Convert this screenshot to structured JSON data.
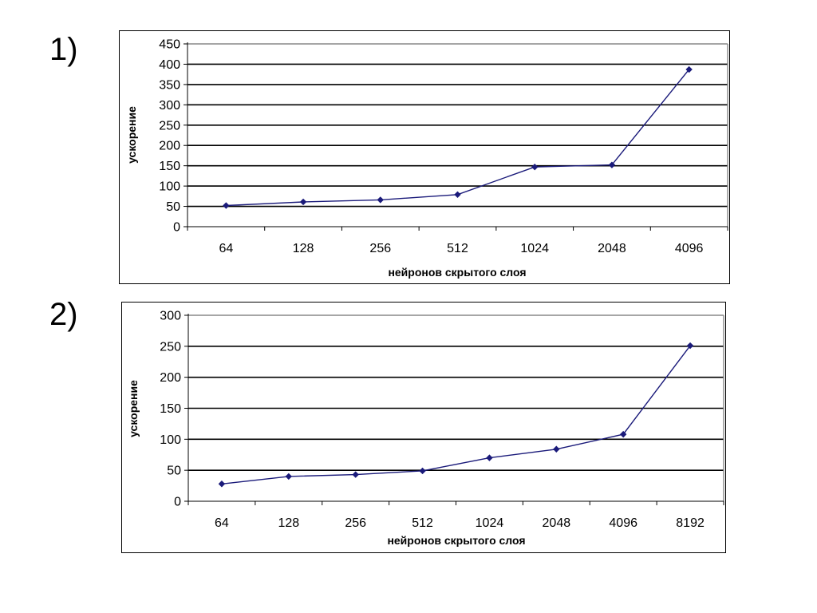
{
  "slide": {
    "labels": [
      "1)",
      "2)"
    ]
  },
  "chart_data": [
    {
      "type": "line",
      "categories": [
        "64",
        "128",
        "256",
        "512",
        "1024",
        "2048",
        "4096"
      ],
      "series": [
        {
          "values": [
            52,
            61,
            66,
            79,
            147,
            152,
            387
          ]
        }
      ],
      "xlabel": "нейронов скрытого слоя",
      "ylabel": "ускорение",
      "ylim": [
        0,
        450
      ],
      "yticks": [
        0,
        50,
        100,
        150,
        200,
        250,
        300,
        350,
        400,
        450
      ],
      "grid": true,
      "line_color": "#1a1a7a",
      "marker": "diamond",
      "gridline_color": "#000000",
      "top_gridline_color": "#888888"
    },
    {
      "type": "line",
      "categories": [
        "64",
        "128",
        "256",
        "512",
        "1024",
        "2048",
        "4096",
        "8192"
      ],
      "series": [
        {
          "values": [
            28,
            40,
            43,
            49,
            70,
            84,
            108,
            251
          ]
        }
      ],
      "xlabel": "нейронов скрытого слоя",
      "ylabel": "ускорение",
      "ylim": [
        0,
        300
      ],
      "yticks": [
        0,
        50,
        100,
        150,
        200,
        250,
        300
      ],
      "grid": true,
      "line_color": "#1a1a7a",
      "marker": "diamond",
      "gridline_color": "#000000",
      "top_gridline_color": "#888888"
    }
  ]
}
